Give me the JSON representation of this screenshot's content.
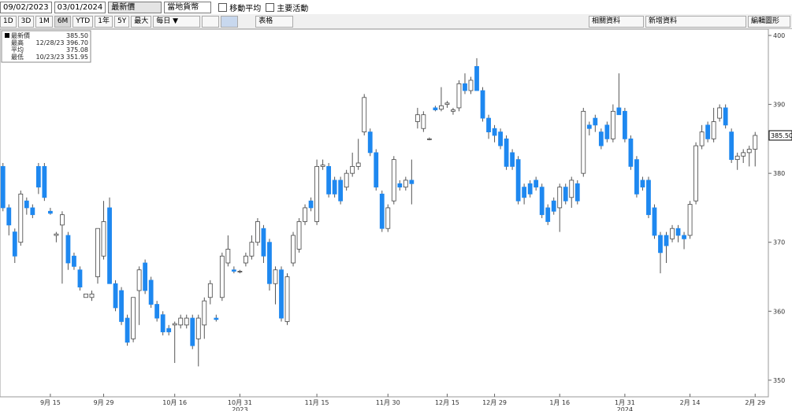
{
  "toolbar": {
    "start_date": "09/02/2023",
    "end_date": "03/01/2024",
    "field": "最新價",
    "currency": "當地貨幣",
    "moving_average": "移動平均",
    "events": "主要活動",
    "ranges": [
      "1D",
      "3D",
      "1M",
      "6M",
      "YTD",
      "1年",
      "5Y",
      "最大"
    ],
    "selected_range": "6M",
    "period": "每日 ▼",
    "table": "表格",
    "related": "相關資料",
    "add_data": "新增資料",
    "edit": "編輯圖形"
  },
  "chart_data": {
    "type": "candlestick",
    "legend": [
      {
        "name": "最新價",
        "text": "385.50"
      },
      {
        "name": "最高",
        "text": "12/28/23 396.70"
      },
      {
        "name": "平均",
        "text": "375.08"
      },
      {
        "name": "最低",
        "text": "10/23/23 351.95"
      }
    ],
    "last_price": {
      "value": 385.5,
      "label": "385.50"
    },
    "up_color": "#ffffff",
    "down_color": "#1e88f0",
    "categories": [
      null,
      null,
      null,
      null,
      null,
      null,
      null,
      null,
      "9月 15",
      null,
      null,
      null,
      null,
      null,
      null,
      null,
      null,
      "9月 29",
      null,
      null,
      null,
      null,
      null,
      null,
      null,
      null,
      null,
      null,
      null,
      "10月 16",
      null,
      null,
      null,
      null,
      null,
      null,
      null,
      null,
      null,
      null,
      "10月 31",
      null,
      null,
      null,
      null,
      null,
      null,
      null,
      null,
      null,
      null,
      null,
      null,
      "11月 15",
      null,
      null,
      null,
      null,
      null,
      null,
      null,
      null,
      null,
      null,
      null,
      "11月 30",
      null,
      null,
      null,
      null,
      null,
      null,
      null,
      null,
      null,
      "12月 15",
      null,
      null,
      null,
      null,
      null,
      null,
      null,
      "12月 29",
      null,
      null,
      null,
      null,
      null,
      null,
      null,
      null,
      null,
      null,
      "1月 16",
      null,
      null,
      null,
      null,
      null,
      null,
      null,
      null,
      null,
      null,
      "1月 31",
      null,
      null,
      null,
      null,
      null,
      null,
      null,
      null,
      null,
      null,
      "2月 14",
      null,
      null,
      null,
      null,
      null,
      null,
      null,
      null,
      null,
      null,
      "2月 29"
    ],
    "year_labels": [
      {
        "label": "2023",
        "at": "10月 31"
      },
      {
        "label": "2024",
        "at": "1月 31"
      }
    ],
    "open": [
      381,
      375,
      371.5,
      370,
      376,
      375,
      381,
      381,
      374.5,
      371,
      372.5,
      371,
      368,
      366,
      362,
      362,
      365,
      368,
      375,
      364,
      363,
      359,
      356,
      363,
      367,
      364.5,
      361,
      359.5,
      357.5,
      358,
      358,
      358,
      359,
      356,
      358,
      362,
      359,
      362,
      367,
      366,
      365.8,
      367,
      368,
      370,
      372,
      370,
      364,
      366,
      358.5,
      367,
      369,
      373,
      376,
      373,
      381,
      381,
      379,
      379,
      378,
      380,
      381,
      386,
      386,
      383,
      377,
      372,
      376,
      378.5,
      378,
      379,
      387.5,
      386.5,
      385,
      389.5,
      389.3,
      390,
      389,
      389.5,
      393,
      392,
      395.5,
      392,
      388,
      386.5,
      386,
      385,
      383,
      382,
      378,
      378.5,
      379,
      378,
      375,
      376,
      375,
      378,
      376.5,
      378.5,
      380,
      387,
      388,
      386,
      387,
      385,
      389.5,
      389,
      385,
      382,
      379,
      379,
      375,
      371,
      371,
      370.5,
      372,
      371,
      371,
      376,
      384,
      387,
      385,
      388,
      389.5,
      386,
      382,
      382.5,
      383,
      383.5
    ],
    "high": [
      381.5,
      375.5,
      372,
      377.5,
      376.5,
      375.5,
      381.5,
      381.5,
      375,
      371.5,
      374.5,
      371.5,
      368.5,
      366.5,
      362.5,
      363,
      372,
      376,
      376.5,
      364.5,
      363.5,
      359.5,
      362,
      366.5,
      367.5,
      365,
      361.5,
      360,
      358,
      358.5,
      359.5,
      359.5,
      359.5,
      359.5,
      362,
      364.5,
      359.5,
      368.5,
      371,
      366.5,
      366,
      368.5,
      371,
      373.5,
      372.5,
      370.5,
      366.5,
      366.5,
      365.5,
      371.5,
      373.5,
      375.5,
      376.5,
      382,
      382,
      381.5,
      379.5,
      379.5,
      380.5,
      383,
      385,
      391.5,
      386.5,
      383.5,
      377.5,
      375.5,
      382.5,
      379,
      379.5,
      382,
      389.5,
      389,
      385.2,
      389.8,
      392.5,
      390.5,
      389.5,
      393.5,
      394.5,
      394,
      396.7,
      392.5,
      388.5,
      387,
      386.5,
      385.5,
      383.5,
      382.5,
      378.5,
      379,
      379.5,
      378.5,
      375.5,
      376.5,
      378.5,
      378.5,
      379.5,
      379,
      389.5,
      387.5,
      388.5,
      386.5,
      387.5,
      390,
      394.5,
      389.5,
      385.5,
      382.5,
      379.5,
      379.5,
      375.5,
      371.5,
      371.5,
      372.5,
      372.5,
      371.5,
      376,
      384.5,
      387,
      387.5,
      389.5,
      390,
      390,
      386.5,
      383,
      383.5,
      384,
      386
    ],
    "low": [
      374.5,
      371,
      367,
      369.5,
      374,
      373.5,
      377,
      376,
      374,
      370,
      364,
      366,
      366,
      363,
      362,
      361.5,
      364,
      367.5,
      364,
      360,
      358,
      355,
      355.5,
      358,
      362.5,
      360.5,
      358.5,
      356.5,
      356.5,
      352.5,
      357.5,
      357.5,
      354.5,
      352,
      356,
      361,
      358.5,
      361.5,
      366.5,
      365.5,
      365.5,
      366.5,
      367.5,
      369.5,
      367,
      363,
      361,
      358.5,
      358,
      366.5,
      368.5,
      372.5,
      374.5,
      372.5,
      380.5,
      376.5,
      376.5,
      375.5,
      377.5,
      379.5,
      380.5,
      385.5,
      382.5,
      377.5,
      371.5,
      371.5,
      375.5,
      377.5,
      377.5,
      375.5,
      386.5,
      386,
      384.8,
      389,
      389,
      389.5,
      388.5,
      389,
      391.5,
      391.5,
      392,
      387.5,
      385,
      384.5,
      383.5,
      380.5,
      380.5,
      375.5,
      375.5,
      376.5,
      377.5,
      373.5,
      372.5,
      374,
      371.5,
      375.5,
      375,
      375.5,
      379.5,
      385.5,
      386,
      383.5,
      384.5,
      384.5,
      388.5,
      384.5,
      380.5,
      376.5,
      377.5,
      373.5,
      370.5,
      365.5,
      367,
      370,
      370,
      369,
      370.5,
      375.5,
      383.5,
      384.5,
      384.5,
      387.5,
      386.5,
      381.5,
      380.5,
      381.5,
      381,
      381
    ],
    "close": [
      375,
      372.5,
      368,
      377,
      375,
      374,
      378,
      376.5,
      374.2,
      371.2,
      374,
      367,
      366.5,
      363.5,
      362.5,
      362.5,
      372,
      373,
      364,
      360.5,
      358.5,
      355.5,
      362,
      366,
      363,
      361,
      359,
      357,
      357,
      358.2,
      359,
      359,
      355,
      359,
      361.5,
      364,
      358.8,
      368,
      369,
      365.8,
      365.8,
      368,
      370,
      373,
      368,
      364,
      366,
      359,
      365,
      371,
      373,
      375,
      375,
      381,
      381.2,
      377,
      377,
      376,
      380,
      381,
      381.5,
      391,
      383,
      378,
      372,
      375,
      382,
      378,
      379,
      378.5,
      388.5,
      388.5,
      385,
      389.2,
      389.8,
      390.2,
      389.2,
      393,
      392,
      393.5,
      392,
      388,
      386,
      385.5,
      384,
      381,
      381,
      376,
      376.5,
      377,
      378,
      374,
      373,
      374.5,
      378,
      376,
      379,
      376,
      389,
      386.5,
      387,
      384,
      385,
      389,
      388.5,
      385,
      381,
      377,
      378,
      374,
      371,
      368.5,
      369.5,
      372,
      371,
      370.5,
      375.5,
      384,
      386,
      385,
      387.5,
      389.5,
      387,
      382,
      382.5,
      383,
      383.5,
      385.5
    ],
    "ylim": [
      347.7,
      400.8
    ],
    "yticks": [
      350,
      360,
      370,
      380,
      390,
      400
    ]
  }
}
